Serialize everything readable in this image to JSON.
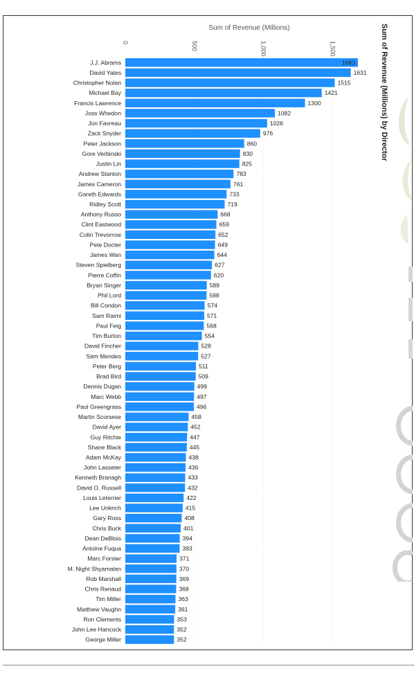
{
  "chart_data": {
    "type": "bar",
    "orientation": "horizontal",
    "title": "Sum of Revenue (Millions) by Director",
    "xlabel": "Sum of Revenue (Millions)",
    "ylabel": "",
    "xlim": [
      0,
      1683
    ],
    "x_ticks": [
      0,
      500,
      1000,
      1500
    ],
    "x_tick_labels": [
      "0",
      "500",
      "1,000",
      "1,500"
    ],
    "bar_color": "#1e90ff",
    "grid": true,
    "legend": "none",
    "categories": [
      "J.J. Abrams",
      "David Yates",
      "Christopher Nolan",
      "Michael Bay",
      "Francis Lawrence",
      "Joss Whedon",
      "Jon Favreau",
      "Zack Snyder",
      "Peter Jackson",
      "Gore Verbinski",
      "Justin Lin",
      "Andrew Stanton",
      "James Cameron",
      "Gareth Edwards",
      "Ridley Scott",
      "Anthony Russo",
      "Clint Eastwood",
      "Colin Trevorrow",
      "Pete Docter",
      "James Wan",
      "Steven Spielberg",
      "Pierre Coffin",
      "Bryan Singer",
      "Phil Lord",
      "Bill Condon",
      "Sam Raimi",
      "Paul Feig",
      "Tim Burton",
      "David Fincher",
      "Sam Mendes",
      "Peter Berg",
      "Brad Bird",
      "Dennis Dugan",
      "Marc Webb",
      "Paul Greengrass",
      "Martin Scorsese",
      "David Ayer",
      "Guy Ritchie",
      "Shane Black",
      "Adam McKay",
      "John Lasseter",
      "Kenneth Branagh",
      "David O. Russell",
      "Louis Leterrier",
      "Lee Unkrich",
      "Gary Ross",
      "Chris Buck",
      "Dean DeBlois",
      "Antoine Fuqua",
      "Marc Forster",
      "M. Night Shyamalan",
      "Rob Marshall",
      "Chris Renaud",
      "Tim Miller",
      "Matthew Vaughn",
      "Ron Clements",
      "John Lee Hancock",
      "George Miller"
    ],
    "values": [
      1683,
      1631,
      1515,
      1421,
      1300,
      1082,
      1026,
      976,
      860,
      830,
      825,
      783,
      761,
      733,
      719,
      668,
      659,
      652,
      649,
      644,
      627,
      620,
      589,
      588,
      574,
      571,
      568,
      554,
      528,
      527,
      511,
      509,
      499,
      497,
      496,
      458,
      452,
      447,
      445,
      438,
      436,
      433,
      432,
      422,
      415,
      408,
      401,
      394,
      393,
      371,
      370,
      369,
      368,
      363,
      361,
      353,
      352,
      352
    ]
  }
}
